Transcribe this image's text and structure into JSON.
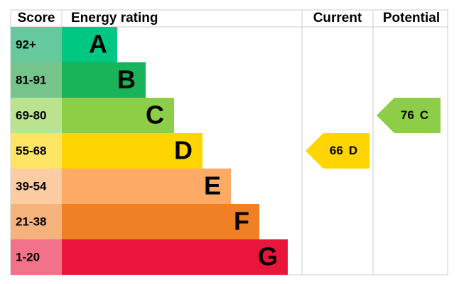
{
  "headers": [
    "Score",
    "Energy rating",
    "Current",
    "Potential"
  ],
  "bands": [
    {
      "score": "92+",
      "letter": "A",
      "color": "#00c781",
      "score_color": "#66c99e"
    },
    {
      "score": "81-91",
      "letter": "B",
      "color": "#19b459",
      "score_color": "#75c48c"
    },
    {
      "score": "69-80",
      "letter": "C",
      "color": "#8dce46",
      "score_color": "#bbe38f"
    },
    {
      "score": "55-68",
      "letter": "D",
      "color": "#ffd500",
      "score_color": "#ffe566"
    },
    {
      "score": "39-54",
      "letter": "E",
      "color": "#fcaa65",
      "score_color": "#fdcca3"
    },
    {
      "score": "21-38",
      "letter": "F",
      "color": "#ef8023",
      "score_color": "#f5b27b"
    },
    {
      "score": "1-20",
      "letter": "G",
      "color": "#e9153b",
      "score_color": "#f27389"
    }
  ],
  "current": {
    "value": 66,
    "letter": "D"
  },
  "potential": {
    "value": 76,
    "letter": "C"
  }
}
